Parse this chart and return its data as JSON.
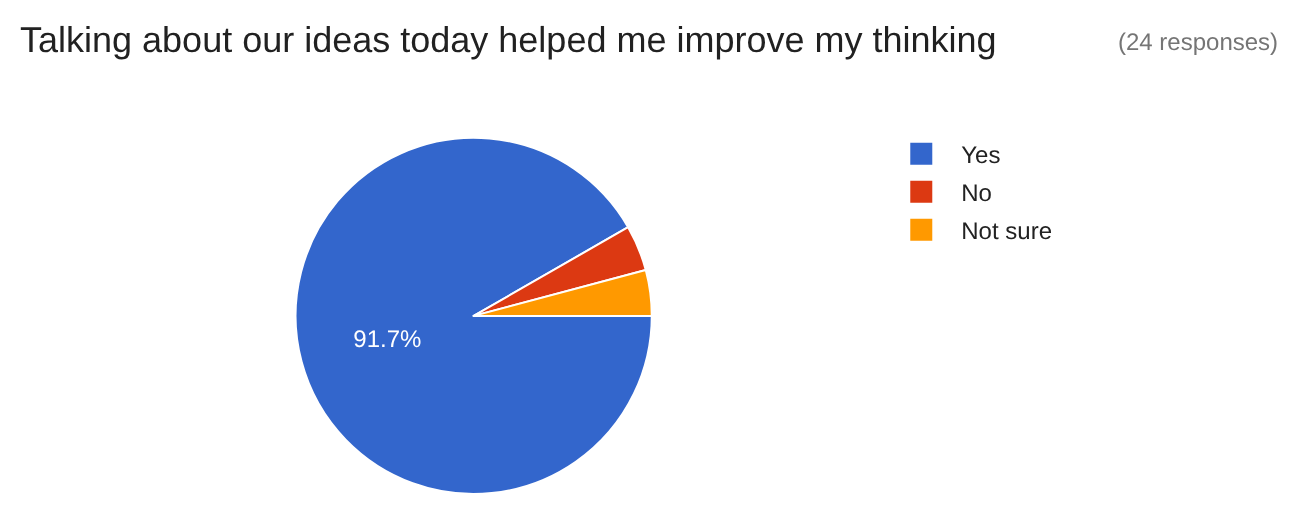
{
  "chart_data": {
    "type": "pie",
    "title": "Talking about our ideas today helped me improve my thinking",
    "subtitle": "(24 responses)",
    "categories": [
      "Yes",
      "No",
      "Not sure"
    ],
    "values": [
      91.7,
      4.15,
      4.15
    ],
    "colors": [
      "#3366cc",
      "#dc3912",
      "#ff9900"
    ],
    "value_labels": [
      "91.7%",
      null,
      null
    ],
    "legend": "top right"
  }
}
